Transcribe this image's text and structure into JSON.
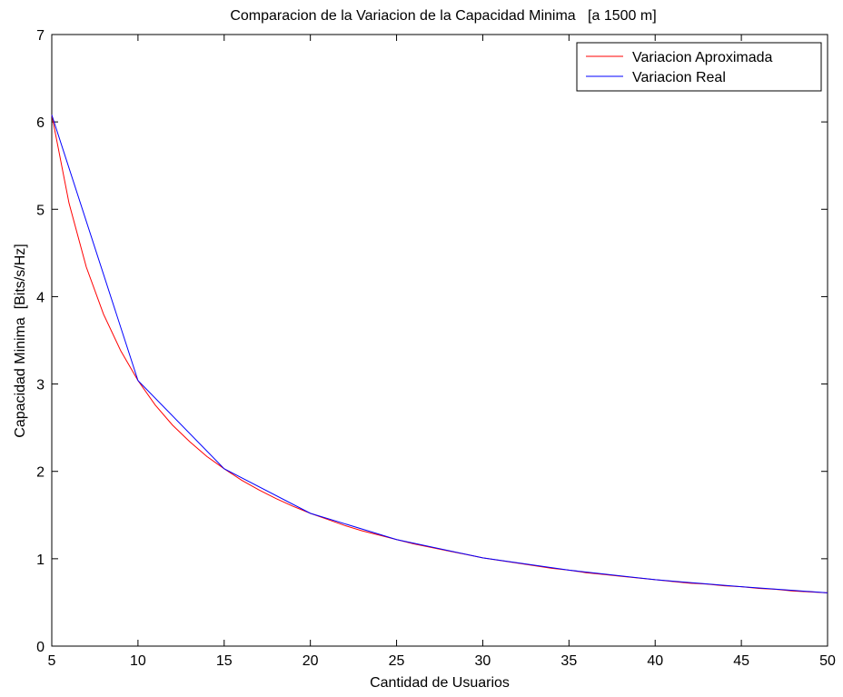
{
  "chart_data": {
    "type": "line",
    "title": "Comparacion de la Variacion de la Capacidad Minima   [a 1500 m]",
    "xlabel": "Cantidad de Usuarios",
    "ylabel": "Capacidad Minima  [Bits/s/Hz]",
    "xlim": [
      5,
      50
    ],
    "ylim": [
      0,
      7
    ],
    "xticks": [
      5,
      10,
      15,
      20,
      25,
      30,
      35,
      40,
      45,
      50
    ],
    "yticks": [
      0,
      1,
      2,
      3,
      4,
      5,
      6,
      7
    ],
    "grid": false,
    "legend_position": "top-right",
    "series": [
      {
        "name": "Variacion Aproximada",
        "color": "#ff0000",
        "x": [
          5,
          6,
          7,
          8,
          9,
          10,
          11,
          12,
          13,
          14,
          15,
          16,
          17,
          18,
          19,
          20,
          21,
          22,
          23,
          24,
          25,
          26,
          27,
          28,
          29,
          30,
          31,
          32,
          33,
          34,
          35,
          36,
          37,
          38,
          39,
          40,
          41,
          42,
          43,
          44,
          45,
          46,
          47,
          48,
          49,
          50
        ],
        "y": [
          6.08,
          5.07,
          4.34,
          3.8,
          3.38,
          3.04,
          2.76,
          2.53,
          2.34,
          2.17,
          2.03,
          1.9,
          1.79,
          1.69,
          1.6,
          1.52,
          1.45,
          1.38,
          1.32,
          1.27,
          1.22,
          1.17,
          1.13,
          1.09,
          1.05,
          1.01,
          0.98,
          0.95,
          0.92,
          0.89,
          0.87,
          0.84,
          0.82,
          0.8,
          0.78,
          0.76,
          0.74,
          0.72,
          0.71,
          0.69,
          0.68,
          0.66,
          0.65,
          0.63,
          0.62,
          0.61
        ]
      },
      {
        "name": "Variacion Real",
        "color": "#0000ff",
        "x": [
          5,
          10,
          15,
          20,
          25,
          30,
          35,
          40,
          45,
          50
        ],
        "y": [
          6.08,
          3.04,
          2.03,
          1.52,
          1.22,
          1.01,
          0.87,
          0.76,
          0.68,
          0.61
        ]
      }
    ]
  }
}
